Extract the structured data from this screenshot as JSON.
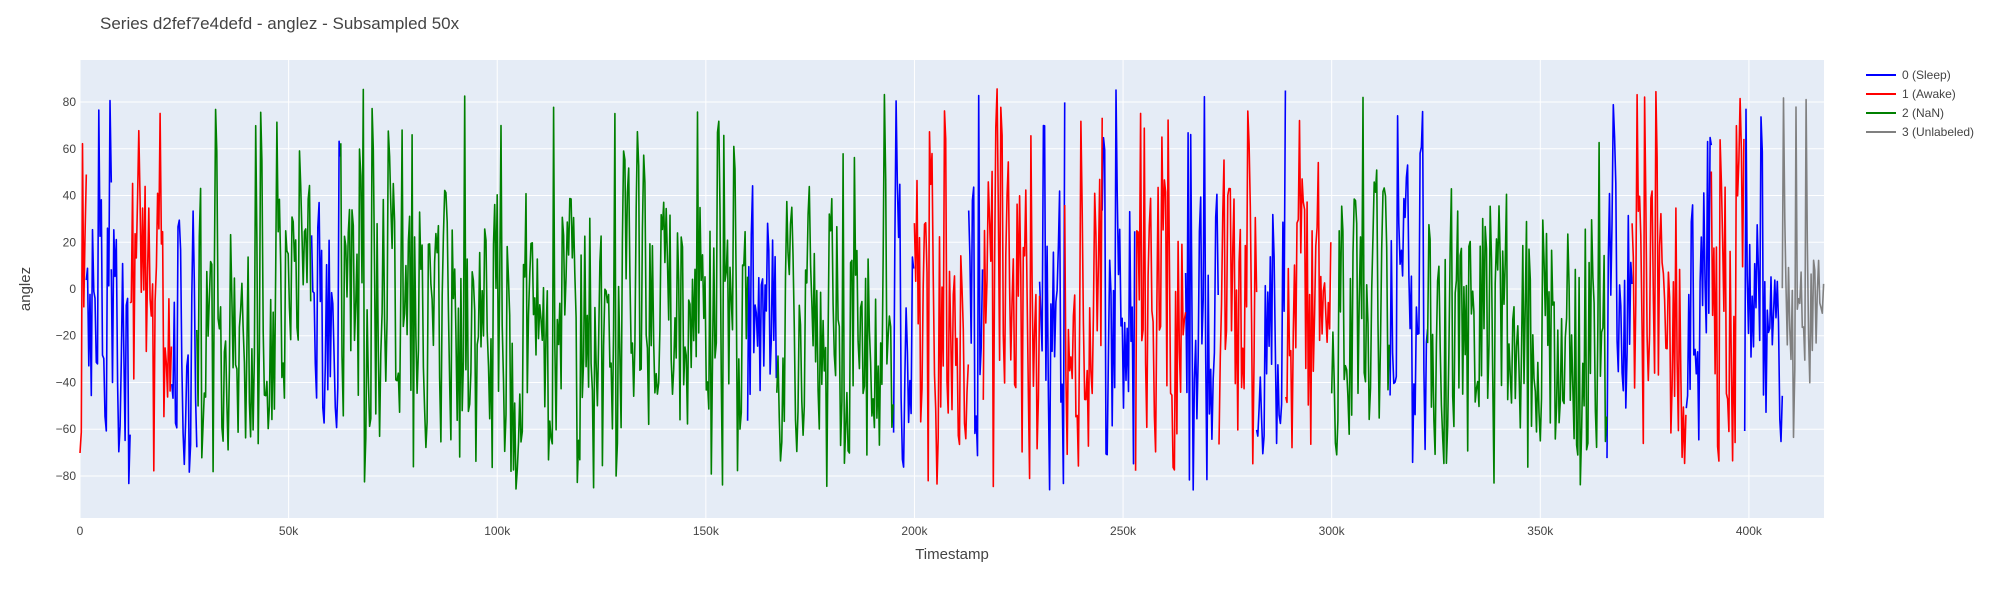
{
  "chart_data": {
    "type": "line",
    "title": "Series d2fef7e4defd - anglez - Subsampled 50x",
    "xlabel": "Timestamp",
    "ylabel": "anglez",
    "xlim": [
      0,
      418000
    ],
    "ylim": [
      -98,
      98
    ],
    "x_ticks": [
      0,
      50000,
      100000,
      150000,
      200000,
      250000,
      300000,
      350000,
      400000
    ],
    "x_tick_labels": [
      "0",
      "50k",
      "100k",
      "150k",
      "200k",
      "250k",
      "300k",
      "350k",
      "400k"
    ],
    "y_ticks": [
      -80,
      -60,
      -40,
      -20,
      0,
      20,
      40,
      60,
      80
    ],
    "y_tick_labels": [
      "−80",
      "−60",
      "−40",
      "−20",
      "0",
      "20",
      "40",
      "60",
      "80"
    ],
    "grid": true,
    "legend_position": "top-right, outside plot",
    "plot_background": "#E5ECF6",
    "series": [
      {
        "name": "0 (Sleep)",
        "color": "#0000FF",
        "segments": [
          [
            1500,
            7500
          ],
          [
            7500,
            12000
          ],
          [
            22000,
            28000
          ],
          [
            55500,
            62500
          ],
          [
            160000,
            167000
          ],
          [
            195000,
            200000
          ],
          [
            213000,
            216500
          ],
          [
            230000,
            236000
          ],
          [
            245000,
            253000
          ],
          [
            265000,
            273000
          ],
          [
            282000,
            289000
          ],
          [
            314000,
            323000
          ],
          [
            366000,
            372000
          ],
          [
            385000,
            391000
          ],
          [
            399000,
            408000
          ]
        ],
        "amplitude": 58
      },
      {
        "name": "1 (Awake)",
        "color": "#FF0000",
        "segments": [
          [
            0,
            1500
          ],
          [
            12000,
            22000
          ],
          [
            200000,
            213000
          ],
          [
            216500,
            230000
          ],
          [
            236000,
            245000
          ],
          [
            253000,
            265000
          ],
          [
            273000,
            282000
          ],
          [
            289000,
            300000
          ],
          [
            372000,
            385000
          ],
          [
            391000,
            399000
          ]
        ],
        "amplitude": 62
      },
      {
        "name": "2 (NaN)",
        "color": "#008000",
        "segments": [
          [
            28000,
            55500
          ],
          [
            62500,
            160000
          ],
          [
            167000,
            195000
          ],
          [
            300000,
            314000
          ],
          [
            323000,
            366000
          ]
        ],
        "amplitude": 55
      },
      {
        "name": "3 (Unlabeled)",
        "color": "#808080",
        "segments": [
          [
            408000,
            418000
          ]
        ],
        "amplitude": 30
      }
    ]
  }
}
